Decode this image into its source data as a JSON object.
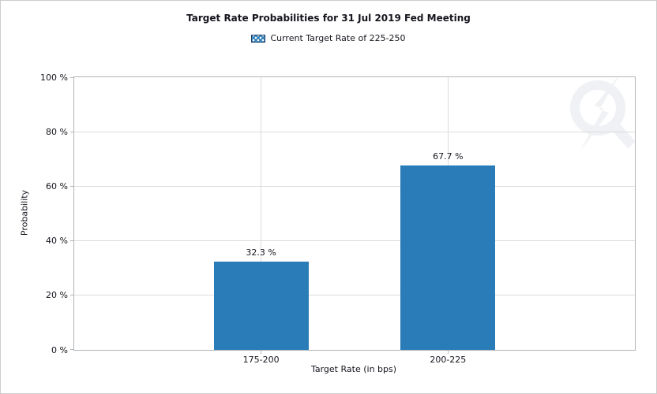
{
  "chart_data": {
    "type": "bar",
    "title": "Target Rate Probabilities for 31 Jul 2019 Fed Meeting",
    "legend": {
      "label": "Current Target Rate of 225-250",
      "swatch_style": "blue-crosshatch",
      "position": "top-center"
    },
    "categories": [
      "175-200",
      "200-225"
    ],
    "values": [
      32.3,
      67.7
    ],
    "value_labels": [
      "32.3 %",
      "67.7 %"
    ],
    "xlabel": "Target Rate (in bps)",
    "ylabel": "Probability",
    "ylim": [
      0,
      100
    ],
    "yticks": [
      0,
      20,
      40,
      60,
      80,
      100
    ],
    "ytick_labels": [
      "0 %",
      "20 %",
      "40 %",
      "60 %",
      "80 %",
      "100 %"
    ],
    "grid": true
  },
  "colors": {
    "bar": "#2a7cb8",
    "text": "#15151e",
    "grid": "#dcdcdc",
    "plot_border": "#b0b4b8",
    "window_border": "#cccccc",
    "watermark": "#f0f1f4",
    "legend_swatch_border": "#1b3a66"
  },
  "watermark": {
    "name": "q-lightning-logo"
  }
}
